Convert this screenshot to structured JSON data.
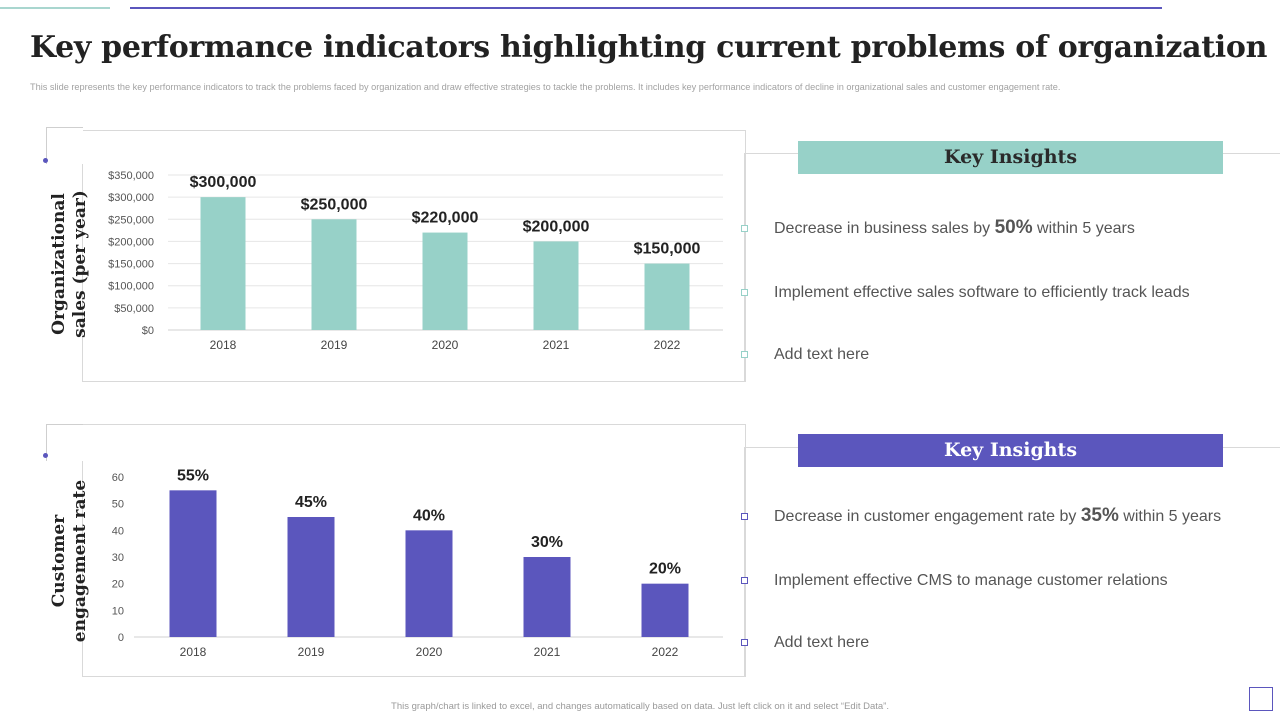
{
  "header": {
    "title": "Key performance indicators highlighting current problems of organization",
    "subtitle": "This slide represents the key performance indicators to track the problems faced by organization and draw effective strategies to tackle the problems. It includes key performance indicators of decline in organizational sales and customer engagement rate."
  },
  "footer": {
    "note": "This graph/chart is linked to excel, and changes automatically based on data. Just left click on it and select “Edit Data”."
  },
  "colors": {
    "teal": "#97d1c8",
    "purple": "#5b56bd"
  },
  "panels": [
    {
      "ylabel_line1": "Organizational",
      "ylabel_line2": "sales (per year)",
      "insights": {
        "header": "Key Insights",
        "items": [
          {
            "pre": "Decrease in business sales by ",
            "highlight": "50%",
            "post": " within 5 years"
          },
          {
            "text": "Implement  effective sales software to efficiently track leads"
          },
          {
            "text": "Add text here"
          }
        ]
      }
    },
    {
      "ylabel_line1": "Customer",
      "ylabel_line2": "engagement rate",
      "insights": {
        "header": "Key Insights",
        "items": [
          {
            "pre": "Decrease in customer  engagement rate by ",
            "highlight": "35%",
            "post": " within 5 years"
          },
          {
            "text": "Implement  effective CMS to manage customer relations"
          },
          {
            "text": "Add text here"
          }
        ]
      }
    }
  ],
  "chart_data": [
    {
      "type": "bar",
      "categories": [
        "2018",
        "2019",
        "2020",
        "2021",
        "2022"
      ],
      "values": [
        300000,
        250000,
        220000,
        200000,
        150000
      ],
      "data_labels": [
        "$300,000",
        "$250,000",
        "$220,000",
        "$200,000",
        "$150,000"
      ],
      "ylim": [
        0,
        350000
      ],
      "yticks": [
        0,
        50000,
        100000,
        150000,
        200000,
        250000,
        300000,
        350000
      ],
      "ytick_labels": [
        "$0",
        "$50,000",
        "$100,000",
        "$150,000",
        "$200,000",
        "$250,000",
        "$300,000",
        "$350,000"
      ],
      "ylabel": "Organizational sales (per year)",
      "grid": true,
      "color": "#97d1c8"
    },
    {
      "type": "bar",
      "categories": [
        "2018",
        "2019",
        "2020",
        "2021",
        "2022"
      ],
      "values": [
        55,
        45,
        40,
        30,
        20
      ],
      "data_labels": [
        "55%",
        "45%",
        "40%",
        "30%",
        "20%"
      ],
      "ylim": [
        0,
        60
      ],
      "yticks": [
        0,
        10,
        20,
        30,
        40,
        50,
        60
      ],
      "ytick_labels": [
        "0",
        "10",
        "20",
        "30",
        "40",
        "50",
        "60"
      ],
      "ylabel": "Customer engagement rate",
      "grid": false,
      "color": "#5b56bd"
    }
  ]
}
